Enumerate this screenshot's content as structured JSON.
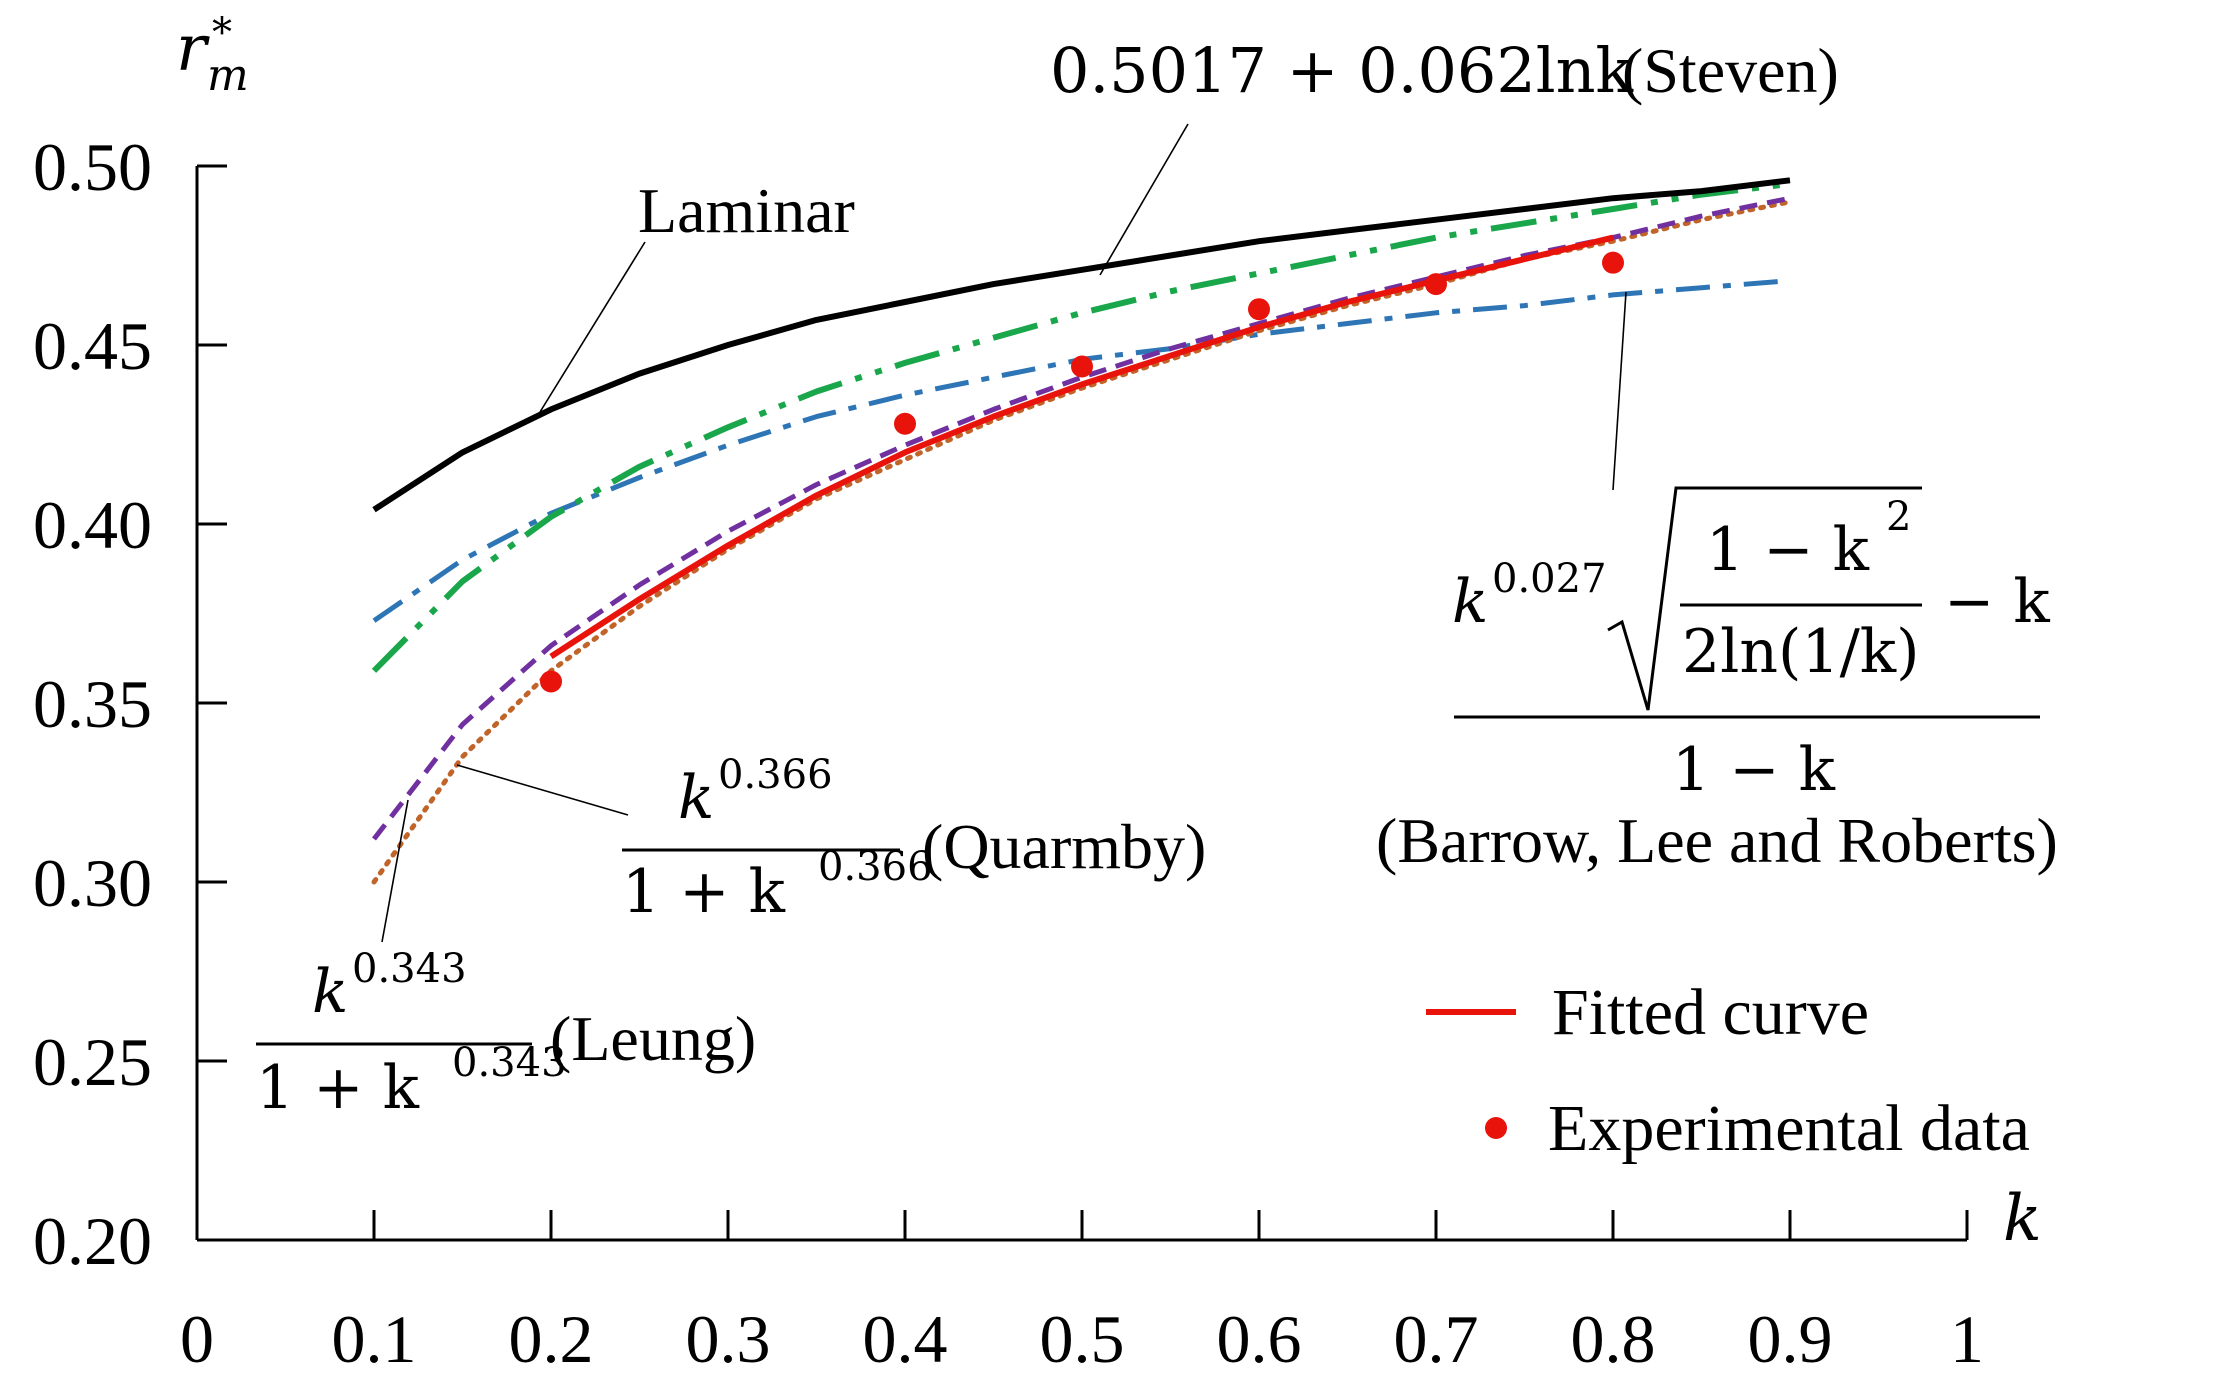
{
  "chart_data": {
    "type": "line",
    "xlim": [
      0,
      1
    ],
    "ylim": [
      0.2,
      0.5
    ],
    "x_ticks": [
      "0",
      "0.1",
      "0.2",
      "0.3",
      "0.4",
      "0.5",
      "0.6",
      "0.7",
      "0.8",
      "0.9",
      "1"
    ],
    "y_ticks": [
      "0.20",
      "0.25",
      "0.30",
      "0.35",
      "0.40",
      "0.45",
      "0.50"
    ],
    "xlabel": "k",
    "ylabel": "r*m",
    "grid": false,
    "legend_position": "bottom-right",
    "series": [
      {
        "key": "laminar",
        "color": "#000000",
        "dash": "solid",
        "x": [
          0.1,
          0.15,
          0.2,
          0.25,
          0.3,
          0.35,
          0.4,
          0.45,
          0.5,
          0.55,
          0.6,
          0.65,
          0.7,
          0.75,
          0.8,
          0.85,
          0.9
        ],
        "values": [
          0.404,
          0.42,
          0.432,
          0.442,
          0.45,
          0.457,
          0.462,
          0.467,
          0.471,
          0.475,
          0.479,
          0.482,
          0.485,
          0.488,
          0.491,
          0.493,
          0.496
        ]
      },
      {
        "key": "steven",
        "color": "#1aa64a",
        "dash": "dashdotdot",
        "x": [
          0.1,
          0.15,
          0.2,
          0.25,
          0.3,
          0.35,
          0.4,
          0.45,
          0.5,
          0.55,
          0.6,
          0.65,
          0.7,
          0.75,
          0.8,
          0.85,
          0.9
        ],
        "values": [
          0.359,
          0.384,
          0.402,
          0.416,
          0.427,
          0.437,
          0.445,
          0.452,
          0.459,
          0.465,
          0.47,
          0.475,
          0.48,
          0.484,
          0.488,
          0.492,
          0.495
        ]
      },
      {
        "key": "barrow",
        "color": "#2e75b6",
        "dash": "dashdot",
        "x": [
          0.1,
          0.15,
          0.2,
          0.25,
          0.3,
          0.35,
          0.4,
          0.45,
          0.5,
          0.55,
          0.6,
          0.65,
          0.7,
          0.75,
          0.8,
          0.85,
          0.9
        ],
        "values": [
          0.373,
          0.39,
          0.403,
          0.413,
          0.422,
          0.43,
          0.436,
          0.441,
          0.446,
          0.449,
          0.453,
          0.456,
          0.459,
          0.461,
          0.464,
          0.466,
          0.468
        ]
      },
      {
        "key": "quarmby",
        "color": "#c0642a",
        "dash": "dotted",
        "x": [
          0.1,
          0.15,
          0.2,
          0.25,
          0.3,
          0.35,
          0.4,
          0.45,
          0.5,
          0.55,
          0.6,
          0.65,
          0.7,
          0.75,
          0.8,
          0.85,
          0.9
        ],
        "values": [
          0.3,
          0.335,
          0.359,
          0.377,
          0.393,
          0.407,
          0.418,
          0.429,
          0.438,
          0.446,
          0.454,
          0.461,
          0.467,
          0.474,
          0.479,
          0.485,
          0.49
        ]
      },
      {
        "key": "leung",
        "color": "#7030a0",
        "dash": "dashed",
        "x": [
          0.1,
          0.15,
          0.2,
          0.25,
          0.3,
          0.35,
          0.4,
          0.45,
          0.5,
          0.55,
          0.6,
          0.65,
          0.7,
          0.75,
          0.8,
          0.85,
          0.9
        ],
        "values": [
          0.312,
          0.344,
          0.366,
          0.383,
          0.398,
          0.411,
          0.422,
          0.432,
          0.441,
          0.449,
          0.456,
          0.463,
          0.469,
          0.475,
          0.48,
          0.486,
          0.491
        ]
      },
      {
        "key": "fitted",
        "color": "#e8140c",
        "dash": "solid",
        "x": [
          0.2,
          0.25,
          0.3,
          0.35,
          0.4,
          0.45,
          0.5,
          0.55,
          0.6,
          0.65,
          0.7,
          0.75,
          0.8
        ],
        "values": [
          0.363,
          0.379,
          0.394,
          0.408,
          0.42,
          0.43,
          0.439,
          0.447,
          0.455,
          0.462,
          0.468,
          0.474,
          0.48
        ]
      }
    ],
    "experimental": {
      "color": "#e8140c",
      "x": [
        0.2,
        0.4,
        0.5,
        0.6,
        0.7,
        0.8
      ],
      "values": [
        0.356,
        0.428,
        0.444,
        0.46,
        0.467,
        0.473
      ]
    },
    "legend": {
      "fitted": "Fitted curve",
      "experimental": "Experimental data"
    },
    "annotations": {
      "laminar": "Laminar",
      "steven_formula": "0.5017 + 0.062lnk",
      "steven_name": "(Steven)",
      "barrow_exp": "0.027",
      "barrow_num": "1 − k",
      "barrow_num_exp": "2",
      "barrow_den": "2ln(1/k)",
      "barrow_minus": "− k",
      "barrow_bottom": "1 − k",
      "barrow_name": "(Barrow,  Lee and Roberts)",
      "quarmby_exp": "0.366",
      "quarmby_den": "1 + k",
      "quarmby_name": "(Quarmby)",
      "leung_exp": "0.343",
      "leung_den": "1 + k",
      "leung_name": "(Leung)",
      "k": "k"
    }
  }
}
